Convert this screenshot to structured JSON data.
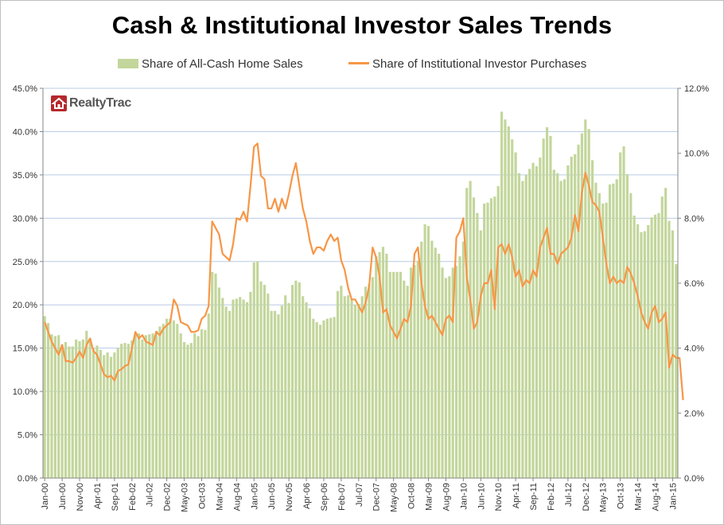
{
  "title": "Cash & Institutional Investor Sales Trends",
  "logo_text": "RealtyTrac",
  "legend": {
    "bar": "Share of All-Cash Home Sales",
    "line": "Share of Institutional Investor Purchases"
  },
  "colors": {
    "bar": "#c3d69b",
    "line": "#f79646",
    "grid": "#b9cce4",
    "logo": "#b5282c"
  },
  "chart_data": {
    "type": "bar+line",
    "title": "Cash & Institutional Investor Sales Trends",
    "start_month": "2000-01",
    "xlabel": "",
    "x_tick_labels": [
      "Jan-00",
      "Jun-00",
      "Nov-00",
      "Apr-01",
      "Sep-01",
      "Feb-02",
      "Jul-02",
      "Dec-02",
      "May-03",
      "Oct-03",
      "Mar-04",
      "Aug-04",
      "Jan-05",
      "Jun-05",
      "Nov-05",
      "Apr-06",
      "Sep-06",
      "Feb-07",
      "Jul-07",
      "Dec-07",
      "May-08",
      "Oct-08",
      "Mar-09",
      "Aug-09",
      "Jan-10",
      "Jun-10",
      "Nov-10",
      "Apr-11",
      "Sep-11",
      "Feb-12",
      "Jul-12",
      "Dec-12",
      "May-13",
      "Oct-13",
      "Mar-14",
      "Aug-14",
      "Jan-15"
    ],
    "y_left": {
      "label": "Share of All-Cash Home Sales",
      "min": 0,
      "max": 45,
      "step": 5,
      "tick_labels": [
        "0.0%",
        "5.0%",
        "10.0%",
        "15.0%",
        "20.0%",
        "25.0%",
        "30.0%",
        "35.0%",
        "40.0%",
        "45.0%"
      ]
    },
    "y_right": {
      "label": "Share of Institutional Investor Purchases",
      "min": 0,
      "max": 12,
      "step": 2,
      "tick_labels": [
        "0.0%",
        "2.0%",
        "4.0%",
        "6.0%",
        "8.0%",
        "10.0%",
        "12.0%"
      ]
    },
    "series": [
      {
        "name": "Share of All-Cash Home Sales",
        "type": "bar",
        "axis": "left",
        "values": [
          18.7,
          17.9,
          16.6,
          16.4,
          16.5,
          15.4,
          15.7,
          15.2,
          15.2,
          16.0,
          15.8,
          16.0,
          17.0,
          16.1,
          15.0,
          15.3,
          14.8,
          14.2,
          14.5,
          14.0,
          14.5,
          15.0,
          15.5,
          15.6,
          15.5,
          15.9,
          16.6,
          16.7,
          16.0,
          16.5,
          16.6,
          16.7,
          17.0,
          17.5,
          17.8,
          18.4,
          18.4,
          18.2,
          17.8,
          16.7,
          15.7,
          15.4,
          15.6,
          16.7,
          16.4,
          17.2,
          17.1,
          19.0,
          23.8,
          23.6,
          22.0,
          20.8,
          19.8,
          19.3,
          20.6,
          20.7,
          20.9,
          20.6,
          20.3,
          21.5,
          24.9,
          25.0,
          22.7,
          22.3,
          21.3,
          19.3,
          19.3,
          18.9,
          19.9,
          21.1,
          20.2,
          22.3,
          22.8,
          22.6,
          21.0,
          20.3,
          19.6,
          18.4,
          18.0,
          17.7,
          18.2,
          18.4,
          18.5,
          18.6,
          21.6,
          22.2,
          21.0,
          21.1,
          20.7,
          20.0,
          20.1,
          21.0,
          22.1,
          22.4,
          23.2,
          25.6,
          26.1,
          26.7,
          25.9,
          23.8,
          23.8,
          23.8,
          23.8,
          22.8,
          22.2,
          24.3,
          24.6,
          25.1,
          27.3,
          29.3,
          29.1,
          27.4,
          26.6,
          25.9,
          24.3,
          23.1,
          23.3,
          24.3,
          24.5,
          25.6,
          27.3,
          33.5,
          34.3,
          32.4,
          30.6,
          28.6,
          31.7,
          31.8,
          32.3,
          32.5,
          33.7,
          42.3,
          41.4,
          40.6,
          39.1,
          37.6,
          35.2,
          34.3,
          35.0,
          35.7,
          36.4,
          36.0,
          37.0,
          39.2,
          40.5,
          39.5,
          35.6,
          35.2,
          34.3,
          34.5,
          36.1,
          37.1,
          37.4,
          38.5,
          39.8,
          41.4,
          40.3,
          36.7,
          34.1,
          32.9,
          31.7,
          31.8,
          33.9,
          34.0,
          34.5,
          37.6,
          38.3,
          35.1,
          32.9,
          30.3,
          29.3,
          28.4,
          28.5,
          29.2,
          30.1,
          30.4,
          30.6,
          32.5,
          33.5,
          29.7,
          28.6,
          24.7
        ]
      },
      {
        "name": "Share of Institutional Investor Purchases",
        "type": "line",
        "axis": "right",
        "values": [
          4.8,
          4.5,
          4.2,
          4.0,
          3.8,
          4.1,
          3.6,
          3.6,
          3.55,
          3.7,
          3.9,
          3.7,
          4.1,
          4.3,
          3.9,
          3.8,
          3.5,
          3.2,
          3.1,
          3.15,
          3.0,
          3.3,
          3.35,
          3.45,
          3.5,
          4.0,
          4.5,
          4.3,
          4.4,
          4.2,
          4.15,
          4.1,
          4.5,
          4.4,
          4.6,
          4.7,
          4.8,
          5.5,
          5.3,
          4.8,
          4.75,
          4.7,
          4.5,
          4.5,
          4.55,
          4.9,
          5.0,
          5.3,
          7.9,
          7.7,
          7.5,
          6.9,
          6.8,
          6.7,
          7.2,
          8.0,
          7.95,
          8.2,
          7.9,
          9.0,
          10.2,
          10.3,
          9.3,
          9.2,
          8.3,
          8.3,
          8.6,
          8.2,
          8.6,
          8.3,
          8.75,
          9.3,
          9.7,
          9.0,
          8.3,
          7.9,
          7.3,
          6.9,
          7.1,
          7.1,
          7.0,
          7.3,
          7.5,
          7.3,
          7.4,
          6.7,
          6.4,
          5.85,
          5.5,
          5.5,
          5.3,
          5.1,
          5.4,
          5.9,
          7.1,
          6.8,
          6.2,
          5.1,
          5.2,
          4.7,
          4.5,
          4.3,
          4.6,
          4.9,
          4.8,
          5.3,
          6.9,
          7.1,
          6.0,
          5.3,
          4.9,
          5.0,
          4.8,
          4.6,
          4.4,
          4.9,
          5.0,
          4.8,
          7.4,
          7.6,
          8.0,
          6.2,
          5.5,
          4.6,
          4.8,
          5.6,
          6.0,
          6.0,
          6.4,
          5.2,
          7.1,
          7.2,
          6.9,
          7.2,
          6.8,
          6.2,
          6.4,
          5.9,
          6.1,
          6.0,
          6.4,
          6.2,
          7.1,
          7.4,
          7.7,
          6.9,
          6.9,
          6.6,
          6.9,
          7.0,
          7.1,
          7.4,
          8.1,
          7.6,
          8.8,
          9.4,
          9.0,
          8.5,
          8.4,
          8.2,
          7.4,
          6.6,
          6.0,
          6.2,
          6.0,
          6.1,
          6.0,
          6.5,
          6.3,
          6.0,
          5.6,
          5.1,
          4.8,
          4.6,
          5.1,
          5.3,
          4.8,
          4.9,
          5.1,
          3.4,
          3.8,
          3.7,
          3.7,
          2.4
        ]
      }
    ]
  }
}
